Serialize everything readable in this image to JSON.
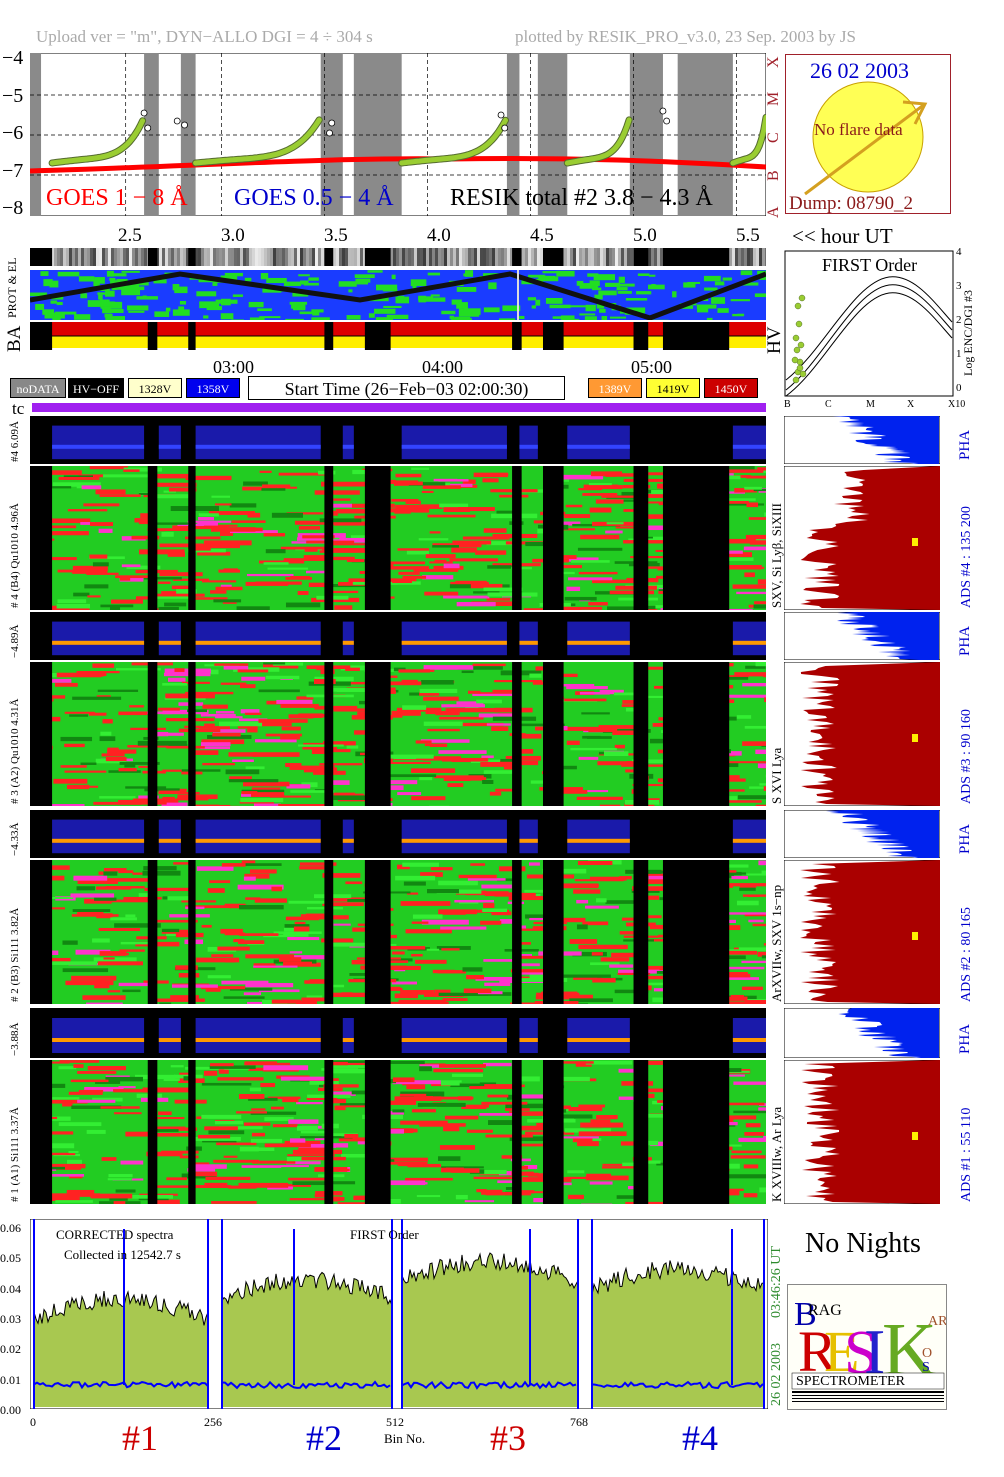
{
  "header": {
    "upload": "Upload ver = \"m\", DYN−ALLO DGI =   4 ÷ 304 s",
    "plotted": "plotted by RESIK_PRO_v3.0, 23 Sep. 2003 by JS"
  },
  "goes": {
    "y_ticks": [
      "−4",
      "−5",
      "−6",
      "−7",
      "−8"
    ],
    "class_letters": [
      "X",
      "M",
      "C",
      "B",
      "A"
    ],
    "label_1_8": "GOES 1 − 8 Å",
    "label_05_4": "GOES 0.5 − 4 Å",
    "label_resik": "RESIK total #2  3.8 − 4.3 Å",
    "x_ticks": [
      "2.5",
      "3.0",
      "3.5",
      "4.0",
      "4.5",
      "5.0",
      "5.5"
    ],
    "x_unit": "<< hour UT",
    "colors": {
      "goes18": "#ff0000",
      "goes054": "#0000cc",
      "resik": "#9acd32",
      "night": "#8a8a8a"
    }
  },
  "sun_box": {
    "date": "26 02 2003",
    "no_flare": "No flare data",
    "dump": "Dump: 08790_2"
  },
  "first_order_plot": {
    "title": "FIRST Order",
    "ylabel": "Log ENC/DGI #3",
    "y_ticks": [
      "4",
      "3",
      "2",
      "1",
      "0"
    ],
    "x_ticks": [
      "B",
      "C",
      "M",
      "X",
      "X10"
    ],
    "left_label": "HV"
  },
  "strip_labels": {
    "prot_el": "PROT & EL",
    "ba": "BA"
  },
  "time_axis": [
    "03:00",
    "04:00",
    "05:00"
  ],
  "legend": {
    "nodata": "noDATA",
    "hvoff": "HV−OFF",
    "v1": "1328V",
    "v2": "1358V",
    "start_time": "Start Time (26−Feb−03 02:00:30)",
    "v3": "1389V",
    "v4": "1419V",
    "v5": "1450V",
    "tc": "tc"
  },
  "channels": [
    {
      "pha_label": "#4 6.09Å",
      "spec_label": "# 4 (B4) Qu1010 4.96Å",
      "ion": "SXV, Si Lyβ, SiXIII",
      "ads": "ADS #4 :  135 200"
    },
    {
      "pha_label": "−4.89Å",
      "spec_label": "# 3 (A2) Qu1010 4.31Å",
      "ion": "S XVI Lya",
      "ads": "ADS #3 :   90 160"
    },
    {
      "pha_label": "−4.33Å",
      "spec_label": "# 2 (B3) Si111 3.82Å",
      "ion": "ArXVIIw, SXV 1s−np",
      "ads": "ADS #2 :   80 165"
    },
    {
      "pha_label": "−3.88Å",
      "spec_label": "# 1 (A1) Si111 3.37Å",
      "ion": "K XVIIIw, Ar Lya",
      "ads": "ADS #1 :   55 110"
    }
  ],
  "pha": "PHA",
  "spectra": {
    "title": "CORRECTED spectra",
    "collected": "Collected in 12542.7 s",
    "order": "FIRST Order",
    "y_ticks": [
      "0.06",
      "0.05",
      "0.04",
      "0.03",
      "0.02",
      "0.01",
      "0.00"
    ],
    "x_ticks": [
      "0",
      "256",
      "512",
      "768"
    ],
    "xlabel": "Bin No.",
    "time_right": "03:46:26 UT",
    "date_right": "26 02 2003",
    "ch_labels": [
      "#1",
      "#2",
      "#3",
      "#4"
    ]
  },
  "no_nights": "No Nights",
  "logo": {
    "spectrometer": "SPECTROMETER"
  }
}
